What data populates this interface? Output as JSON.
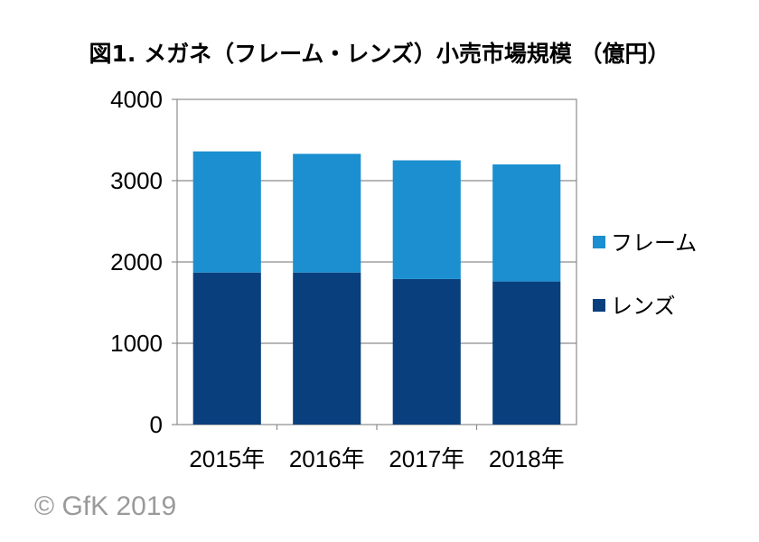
{
  "chart_data": {
    "type": "bar",
    "stacked": true,
    "title": "図1. メガネ（フレーム・レンズ）小売市場規模 （億円）",
    "categories": [
      "2015年",
      "2016年",
      "2017年",
      "2018年"
    ],
    "series": [
      {
        "name": "レンズ",
        "color": "#0a3f7d",
        "values": [
          1870,
          1870,
          1790,
          1760
        ]
      },
      {
        "name": "フレーム",
        "color": "#1b8fcf",
        "values": [
          1490,
          1460,
          1460,
          1440
        ]
      }
    ],
    "ylim": [
      0,
      4000
    ],
    "yticks": [
      "0",
      "1000",
      "2000",
      "3000",
      "4000"
    ],
    "xlabel": "",
    "ylabel": "",
    "grid": true,
    "legend_position": "right"
  },
  "copyright": "© GfK 2019"
}
